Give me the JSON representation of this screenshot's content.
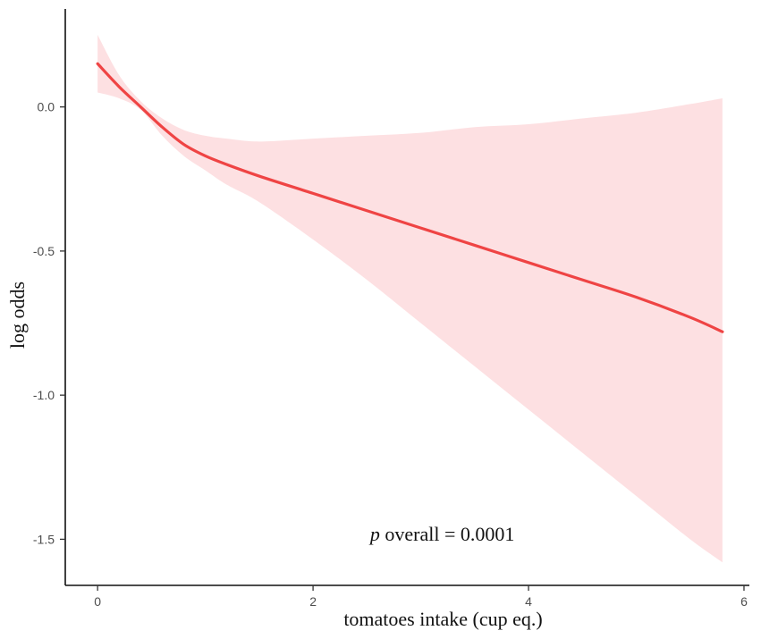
{
  "chart_data": {
    "type": "line",
    "xlabel": "tomatoes intake (cup eq.)",
    "ylabel": "log odds",
    "xlim": [
      -0.3,
      6.05
    ],
    "ylim": [
      -1.66,
      0.34
    ],
    "x_ticks": [
      0,
      2,
      4,
      6
    ],
    "x_tick_labels": [
      "0",
      "2",
      "4",
      "6"
    ],
    "y_ticks": [
      0.0,
      -0.5,
      -1.0,
      -1.5
    ],
    "y_tick_labels": [
      "0.0",
      "-0.5",
      "-1.0",
      "-1.5"
    ],
    "grid": false,
    "line_color": "#ef4444",
    "ribbon_color": "#fde0e2",
    "series": [
      {
        "x": [
          0,
          0.2,
          0.4,
          0.6,
          0.8,
          1.0,
          1.2,
          1.5,
          2.0,
          2.5,
          3.0,
          3.5,
          4.0,
          4.5,
          5.0,
          5.5,
          5.8
        ],
        "y": [
          0.15,
          0.07,
          0.0,
          -0.07,
          -0.13,
          -0.17,
          -0.2,
          -0.24,
          -0.3,
          -0.36,
          -0.42,
          -0.48,
          -0.54,
          -0.6,
          -0.66,
          -0.73,
          -0.78
        ],
        "lower": [
          0.05,
          0.03,
          -0.01,
          -0.1,
          -0.17,
          -0.22,
          -0.27,
          -0.33,
          -0.46,
          -0.6,
          -0.75,
          -0.9,
          -1.05,
          -1.2,
          -1.35,
          -1.5,
          -1.58
        ],
        "upper": [
          0.25,
          0.11,
          0.02,
          -0.04,
          -0.08,
          -0.1,
          -0.11,
          -0.12,
          -0.11,
          -0.1,
          -0.09,
          -0.07,
          -0.06,
          -0.04,
          -0.02,
          0.01,
          0.03
        ]
      }
    ],
    "annotation": {
      "italic_part": "p",
      "text": " overall = 0.0001",
      "x": 3.2,
      "y": -1.505
    }
  }
}
